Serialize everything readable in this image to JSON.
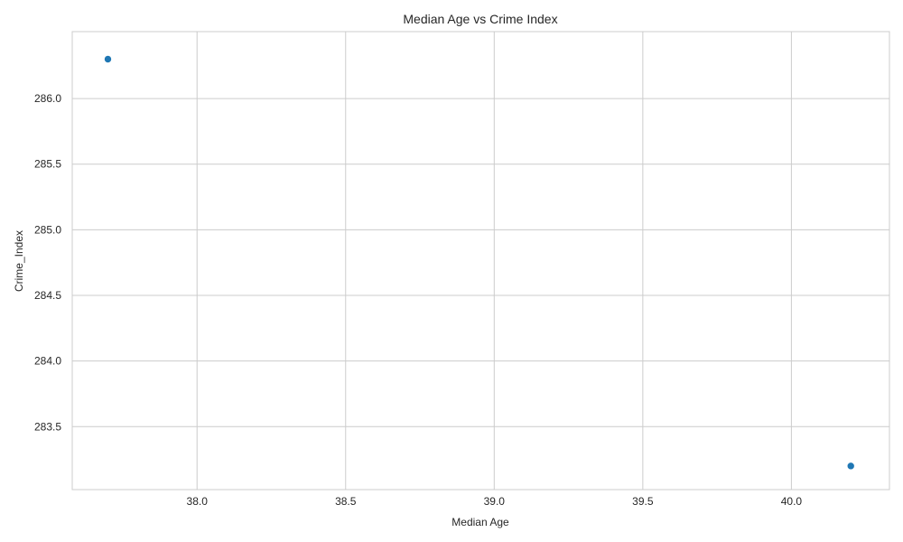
{
  "chart_data": {
    "type": "scatter",
    "title": "Median Age vs Crime Index",
    "xlabel": "Median Age",
    "ylabel": "Crime_Index",
    "xlim": [
      37.58,
      40.33
    ],
    "ylim": [
      283.02,
      286.51
    ],
    "xticks": [
      38.0,
      38.5,
      39.0,
      39.5,
      40.0
    ],
    "xtick_labels": [
      "38.0",
      "38.5",
      "39.0",
      "39.5",
      "40.0"
    ],
    "yticks": [
      283.5,
      284.0,
      284.5,
      285.0,
      285.5,
      286.0
    ],
    "ytick_labels": [
      "283.5",
      "284.0",
      "284.5",
      "285.0",
      "285.5",
      "286.0"
    ],
    "grid": true,
    "legend": "none",
    "series": [
      {
        "color": "#1f77b4",
        "points": [
          {
            "x": 37.7,
            "y": 286.3
          },
          {
            "x": 40.2,
            "y": 283.2
          }
        ]
      }
    ]
  }
}
